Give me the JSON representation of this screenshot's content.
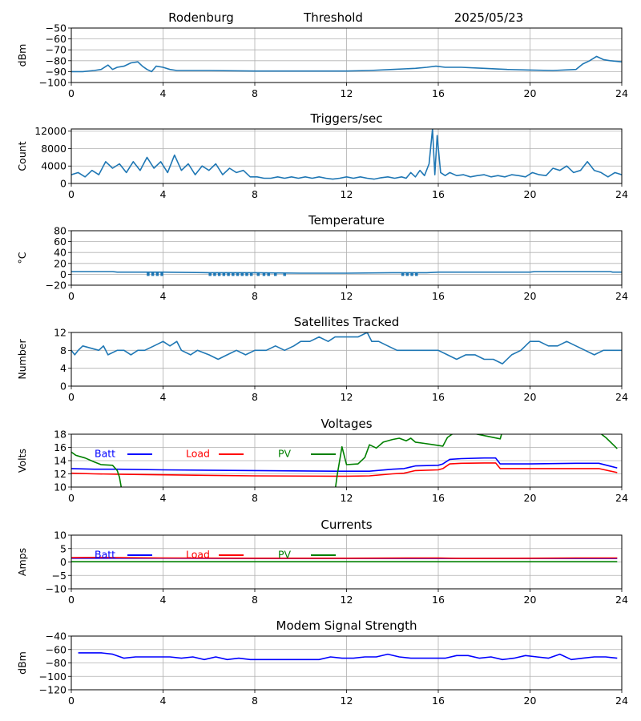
{
  "header": {
    "station": "Rodenburg",
    "mode": "Threshold",
    "date": "2025/05/23"
  },
  "chart_data": [
    {
      "id": "signal",
      "type": "line",
      "title": "",
      "xlabel": "",
      "ylabel": "dBm",
      "xlim": [
        0,
        24
      ],
      "ylim": [
        -100,
        -50
      ],
      "xticks": [
        0,
        4,
        8,
        12,
        16,
        20,
        24
      ],
      "yticks": [
        -100,
        -90,
        -80,
        -70,
        -60,
        -50
      ],
      "grid": true,
      "series": [
        {
          "color": "#1f77b4",
          "x": [
            0,
            0.5,
            1.0,
            1.3,
            1.6,
            1.8,
            2.0,
            2.3,
            2.6,
            2.9,
            3.1,
            3.3,
            3.5,
            3.7,
            4.0,
            4.3,
            4.6,
            5.0,
            6,
            8,
            10,
            12,
            13,
            14,
            15,
            15.5,
            15.9,
            16.3,
            17,
            18,
            19,
            20,
            21,
            22,
            22.3,
            22.6,
            22.9,
            23.2,
            23.5,
            24
          ],
          "y": [
            -90,
            -90,
            -89,
            -88,
            -84,
            -88,
            -86,
            -85,
            -82,
            -81,
            -85,
            -88,
            -90,
            -85,
            -86,
            -88,
            -89,
            -89,
            -89,
            -89.5,
            -89.5,
            -89.5,
            -89,
            -88,
            -87,
            -86,
            -85,
            -86,
            -86,
            -87,
            -88,
            -88.5,
            -89,
            -88,
            -83,
            -80,
            -76,
            -79,
            -80,
            -81
          ]
        }
      ]
    },
    {
      "id": "triggers",
      "type": "line",
      "title": "Triggers/sec",
      "xlabel": "",
      "ylabel": "Count",
      "xlim": [
        0,
        24
      ],
      "ylim": [
        0,
        12500
      ],
      "xticks": [
        0,
        4,
        8,
        12,
        16,
        20,
        24
      ],
      "yticks": [
        0,
        4000,
        8000,
        12000
      ],
      "grid": true,
      "series": [
        {
          "color": "#1f77b4",
          "x": [
            0.0,
            0.3,
            0.6,
            0.9,
            1.2,
            1.5,
            1.8,
            2.1,
            2.4,
            2.7,
            3.0,
            3.3,
            3.6,
            3.9,
            4.2,
            4.5,
            4.8,
            5.1,
            5.4,
            5.7,
            6.0,
            6.3,
            6.6,
            6.9,
            7.2,
            7.5,
            7.8,
            8.1,
            8.4,
            8.7,
            9.0,
            9.3,
            9.6,
            9.9,
            10.2,
            10.5,
            10.8,
            11.1,
            11.4,
            11.7,
            12.0,
            12.3,
            12.6,
            12.9,
            13.2,
            13.5,
            13.8,
            14.1,
            14.4,
            14.6,
            14.8,
            15.0,
            15.2,
            15.4,
            15.6,
            15.75,
            15.85,
            15.95,
            16.1,
            16.3,
            16.5,
            16.8,
            17.1,
            17.4,
            17.7,
            18.0,
            18.3,
            18.6,
            18.9,
            19.2,
            19.5,
            19.8,
            20.1,
            20.4,
            20.7,
            21.0,
            21.3,
            21.6,
            21.9,
            22.2,
            22.5,
            22.8,
            23.1,
            23.4,
            23.7,
            24.0
          ],
          "y": [
            2000,
            2500,
            1500,
            3000,
            2000,
            5000,
            3500,
            4500,
            2500,
            5000,
            3000,
            6000,
            3500,
            5000,
            2500,
            6500,
            3000,
            4500,
            2000,
            4000,
            3000,
            4500,
            2000,
            3500,
            2500,
            3000,
            1500,
            1500,
            1200,
            1200,
            1500,
            1200,
            1500,
            1200,
            1500,
            1200,
            1500,
            1200,
            1000,
            1200,
            1500,
            1200,
            1500,
            1200,
            1000,
            1300,
            1500,
            1200,
            1500,
            1200,
            2500,
            1500,
            3000,
            1800,
            4500,
            12500,
            2000,
            11000,
            2500,
            1800,
            2500,
            1800,
            2000,
            1500,
            1800,
            2000,
            1500,
            1800,
            1500,
            2000,
            1800,
            1500,
            2500,
            2000,
            1800,
            3500,
            3000,
            4000,
            2500,
            3000,
            5000,
            3000,
            2500,
            1500,
            2500,
            2000
          ]
        }
      ]
    },
    {
      "id": "temperature",
      "type": "line",
      "title": "Temperature",
      "xlabel": "",
      "ylabel": "°C",
      "xlim": [
        0,
        24
      ],
      "ylim": [
        -20,
        80
      ],
      "xticks": [
        0,
        4,
        8,
        12,
        16,
        20,
        24
      ],
      "yticks": [
        -20,
        0,
        20,
        40,
        60,
        80
      ],
      "grid": true,
      "series": [
        {
          "color": "#1f77b4",
          "x": [
            0,
            1.8,
            2.0,
            4,
            6,
            8,
            10,
            12,
            14,
            15.5,
            16,
            18,
            20,
            20.2,
            22,
            23.5,
            23.6,
            24
          ],
          "y": [
            5,
            5,
            4,
            4,
            3,
            3,
            2,
            2,
            3,
            3,
            4,
            4,
            4,
            5,
            5,
            5,
            4,
            4
          ]
        }
      ],
      "dropouts": [
        {
          "x": 3.35,
          "y": -3
        },
        {
          "x": 3.55,
          "y": -3
        },
        {
          "x": 3.75,
          "y": -3
        },
        {
          "x": 3.95,
          "y": -3
        },
        {
          "x": 6.05,
          "y": -3
        },
        {
          "x": 6.25,
          "y": -3
        },
        {
          "x": 6.45,
          "y": -3
        },
        {
          "x": 6.65,
          "y": -3
        },
        {
          "x": 6.85,
          "y": -3
        },
        {
          "x": 7.05,
          "y": -3
        },
        {
          "x": 7.25,
          "y": -3
        },
        {
          "x": 7.45,
          "y": -3
        },
        {
          "x": 7.65,
          "y": -3
        },
        {
          "x": 7.85,
          "y": -3
        },
        {
          "x": 8.15,
          "y": -3
        },
        {
          "x": 8.4,
          "y": -3
        },
        {
          "x": 8.6,
          "y": -3
        },
        {
          "x": 8.9,
          "y": -3
        },
        {
          "x": 9.3,
          "y": -3
        },
        {
          "x": 14.45,
          "y": -3
        },
        {
          "x": 14.65,
          "y": -3
        },
        {
          "x": 14.85,
          "y": -3
        },
        {
          "x": 15.05,
          "y": -3
        }
      ]
    },
    {
      "id": "satellites",
      "type": "line",
      "title": "Satellites Tracked",
      "xlabel": "",
      "ylabel": "Number",
      "xlim": [
        0,
        24
      ],
      "ylim": [
        0,
        12
      ],
      "xticks": [
        0,
        4,
        8,
        12,
        16,
        20,
        24
      ],
      "yticks": [
        0,
        4,
        8,
        12
      ],
      "grid": true,
      "series": [
        {
          "color": "#1f77b4",
          "x": [
            0,
            0.15,
            0.3,
            0.5,
            1.2,
            1.4,
            1.6,
            2.0,
            2.3,
            2.6,
            2.9,
            3.2,
            3.6,
            4.0,
            4.3,
            4.6,
            4.8,
            5.2,
            5.5,
            6.0,
            6.4,
            6.8,
            7.2,
            7.6,
            8.0,
            8.5,
            8.9,
            9.3,
            9.7,
            10.0,
            10.4,
            10.8,
            11.2,
            11.5,
            12.0,
            12.5,
            12.9,
            13.1,
            13.4,
            13.8,
            14.2,
            14.6,
            15.0,
            15.5,
            16.0,
            16.4,
            16.8,
            17.2,
            17.6,
            18.0,
            18.4,
            18.8,
            19.2,
            19.6,
            20.0,
            20.4,
            20.8,
            21.2,
            21.6,
            22.0,
            22.4,
            22.8,
            23.2,
            23.6,
            24.0
          ],
          "y": [
            8,
            7,
            8,
            9,
            8,
            9,
            7,
            8,
            8,
            7,
            8,
            8,
            9,
            10,
            9,
            10,
            8,
            7,
            8,
            7,
            6,
            7,
            8,
            7,
            8,
            8,
            9,
            8,
            9,
            10,
            10,
            11,
            10,
            11,
            11,
            11,
            12,
            10,
            10,
            9,
            8,
            8,
            8,
            8,
            8,
            7,
            6,
            7,
            7,
            6,
            6,
            5,
            7,
            8,
            10,
            10,
            9,
            9,
            10,
            9,
            8,
            7,
            8,
            8,
            8
          ]
        }
      ]
    },
    {
      "id": "voltages",
      "type": "line",
      "title": "Voltages",
      "xlabel": "",
      "ylabel": "Volts",
      "xlim": [
        0,
        24
      ],
      "ylim": [
        10,
        18
      ],
      "xticks": [
        0,
        4,
        8,
        12,
        16,
        20,
        24
      ],
      "yticks": [
        10,
        12,
        14,
        16,
        18
      ],
      "grid": true,
      "legend": "top-left, horizontal",
      "series": [
        {
          "name": "Batt",
          "color": "#0000ff",
          "x": [
            0,
            1,
            2,
            4,
            8,
            11.5,
            12,
            13,
            14,
            14.5,
            15,
            16,
            16.2,
            16.5,
            17,
            18,
            18.5,
            18.7,
            19,
            20,
            22,
            23,
            23.8
          ],
          "y": [
            12.8,
            12.7,
            12.7,
            12.6,
            12.5,
            12.4,
            12.4,
            12.4,
            12.7,
            12.8,
            13.2,
            13.3,
            13.5,
            14.2,
            14.3,
            14.4,
            14.4,
            13.5,
            13.5,
            13.5,
            13.6,
            13.6,
            12.9
          ]
        },
        {
          "name": "Load",
          "color": "#ff0000",
          "x": [
            0,
            1,
            2,
            4,
            8,
            11.5,
            12,
            13,
            14,
            14.5,
            15,
            16,
            16.2,
            16.5,
            17,
            18,
            18.5,
            18.7,
            19,
            20,
            22,
            23,
            23.8
          ],
          "y": [
            12.1,
            12.0,
            11.95,
            11.85,
            11.7,
            11.65,
            11.65,
            11.7,
            12.0,
            12.1,
            12.5,
            12.6,
            12.8,
            13.5,
            13.6,
            13.65,
            13.65,
            12.8,
            12.8,
            12.8,
            12.8,
            12.8,
            12.2
          ]
        },
        {
          "name": "PV",
          "color": "#008000",
          "x": [
            0,
            0.2,
            0.6,
            1.0,
            1.3,
            1.8,
            2.0,
            2.1,
            2.2,
            11.5,
            11.6,
            11.8,
            12.0,
            12.5,
            12.8,
            13.0,
            13.3,
            13.6,
            14.0,
            14.3,
            14.6,
            14.8,
            15.0,
            15.4,
            15.8,
            16.2,
            16.4,
            16.6,
            17.0,
            18.7,
            18.8,
            19.0,
            23.0,
            23.3,
            23.6,
            23.8
          ],
          "y": [
            15.3,
            14.8,
            14.4,
            13.8,
            13.4,
            13.3,
            12.5,
            11.5,
            9.5,
            9.5,
            12.0,
            16.1,
            13.4,
            13.5,
            14.5,
            16.4,
            15.9,
            16.8,
            17.2,
            17.4,
            17.0,
            17.4,
            16.8,
            16.6,
            16.4,
            16.2,
            17.5,
            18.0,
            18.5,
            17.3,
            18.5,
            18.5,
            18.3,
            17.5,
            16.5,
            15.8
          ]
        }
      ]
    },
    {
      "id": "currents",
      "type": "line",
      "title": "Currents",
      "xlabel": "",
      "ylabel": "Amps",
      "xlim": [
        0,
        24
      ],
      "ylim": [
        -10,
        10
      ],
      "xticks": [
        0,
        4,
        8,
        12,
        16,
        20,
        24
      ],
      "yticks": [
        -10,
        -5,
        0,
        5,
        10
      ],
      "grid": true,
      "legend": "top-left, horizontal",
      "series": [
        {
          "name": "Batt",
          "color": "#0000ff",
          "x": [
            0,
            4,
            8,
            12,
            16,
            20,
            23.8
          ],
          "y": [
            1.4,
            1.4,
            1.3,
            1.3,
            1.3,
            1.3,
            1.3
          ]
        },
        {
          "name": "Load",
          "color": "#ff0000",
          "x": [
            0,
            1,
            2,
            4,
            8,
            12,
            16,
            17,
            20,
            22,
            23.8
          ],
          "y": [
            1.6,
            1.7,
            1.6,
            1.5,
            1.4,
            1.4,
            1.5,
            1.3,
            1.4,
            1.5,
            1.5
          ]
        },
        {
          "name": "PV",
          "color": "#008000",
          "x": [
            0,
            4,
            8,
            12,
            16,
            20,
            23.8
          ],
          "y": [
            0.1,
            0.1,
            0.1,
            0.1,
            0.1,
            0.1,
            0.1
          ]
        }
      ]
    },
    {
      "id": "modem",
      "type": "line",
      "title": "Modem Signal Strength",
      "xlabel": "",
      "ylabel": "dBm",
      "xlim": [
        0,
        24
      ],
      "ylim": [
        -120,
        -40
      ],
      "xticks": [
        0,
        4,
        8,
        12,
        16,
        20,
        24
      ],
      "yticks": [
        -120,
        -100,
        -80,
        -60,
        -40
      ],
      "grid": true,
      "series": [
        {
          "color": "#0000ff",
          "x": [
            0.3,
            0.8,
            1.3,
            1.8,
            2.3,
            2.8,
            3.3,
            3.8,
            4.3,
            4.8,
            5.3,
            5.8,
            6.3,
            6.8,
            7.3,
            7.8,
            8.3,
            8.8,
            9.3,
            9.8,
            10.3,
            10.8,
            11.3,
            11.8,
            12.3,
            12.8,
            13.3,
            13.8,
            14.3,
            14.8,
            15.3,
            15.8,
            16.3,
            16.8,
            17.3,
            17.8,
            18.3,
            18.8,
            19.3,
            19.8,
            20.3,
            20.8,
            21.3,
            21.8,
            22.3,
            22.8,
            23.3,
            23.8
          ],
          "y": [
            -65,
            -65,
            -65,
            -67,
            -73,
            -71,
            -71,
            -71,
            -71,
            -73,
            -71,
            -75,
            -71,
            -75,
            -73,
            -75,
            -75,
            -75,
            -75,
            -75,
            -75,
            -75,
            -71,
            -73,
            -73,
            -71,
            -71,
            -67,
            -71,
            -73,
            -73,
            -73,
            -73,
            -69,
            -69,
            -73,
            -71,
            -75,
            -73,
            -69,
            -71,
            -73,
            -67,
            -75,
            -73,
            -71,
            -71,
            -73
          ]
        }
      ]
    }
  ]
}
